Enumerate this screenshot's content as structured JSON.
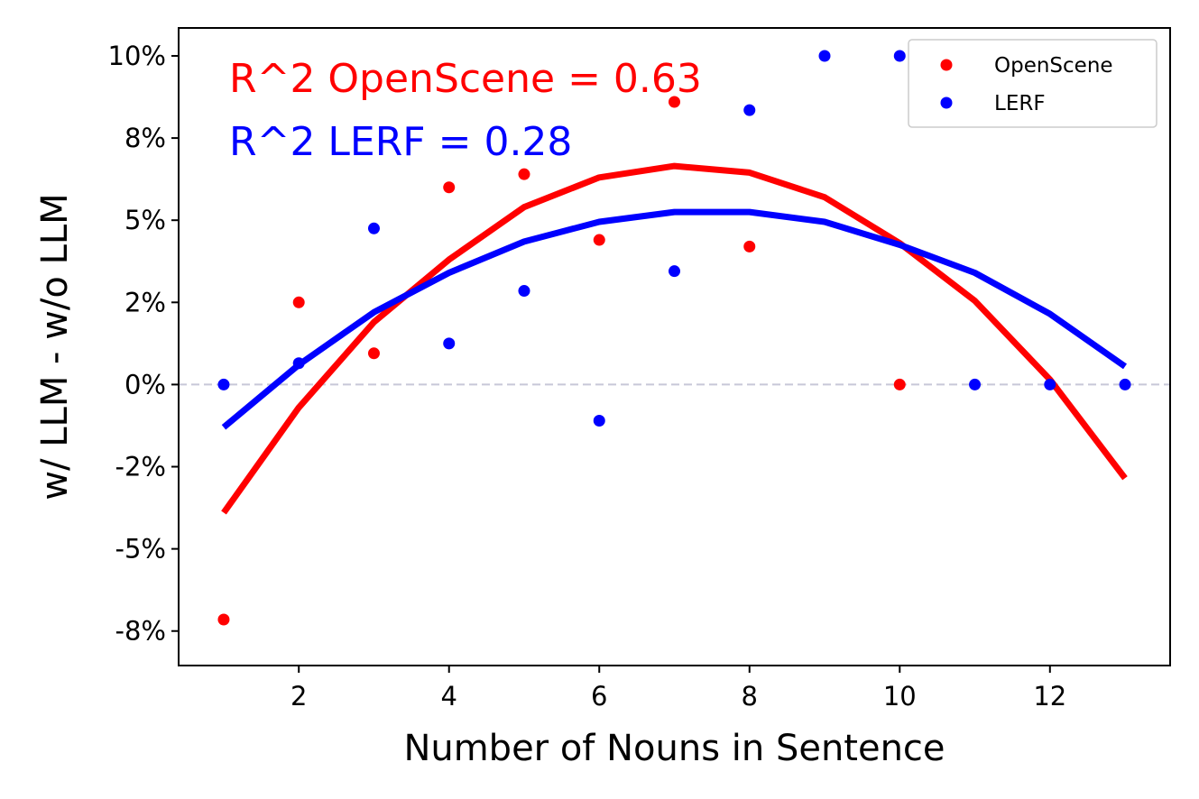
{
  "chart_data": {
    "type": "scatter",
    "xlabel": "Number of Nouns in Sentence",
    "ylabel": "w/ LLM - w/o LLM",
    "xlim": [
      0.4,
      13.6
    ],
    "ylim": [
      -0.0855,
      0.1085
    ],
    "x_ticks": [
      2,
      4,
      6,
      8,
      10,
      12
    ],
    "y_ticks": [
      {
        "value": -0.075,
        "label": "-8%"
      },
      {
        "value": -0.05,
        "label": "-5%"
      },
      {
        "value": -0.025,
        "label": "-2%"
      },
      {
        "value": 0.0,
        "label": "0%"
      },
      {
        "value": 0.025,
        "label": "2%"
      },
      {
        "value": 0.05,
        "label": "5%"
      },
      {
        "value": 0.075,
        "label": "8%"
      },
      {
        "value": 0.1,
        "label": "10%"
      }
    ],
    "reference_line": {
      "y": 0,
      "style": "dashed",
      "color": "#c8c8d8"
    },
    "legend": {
      "position": "top-right"
    },
    "grid": false,
    "series": [
      {
        "name": "OpenScene",
        "color": "#ff0000",
        "points": [
          {
            "x": 1,
            "y": -0.0715
          },
          {
            "x": 2,
            "y": 0.025
          },
          {
            "x": 3,
            "y": 0.0095
          },
          {
            "x": 4,
            "y": 0.06
          },
          {
            "x": 5,
            "y": 0.064
          },
          {
            "x": 6,
            "y": 0.044
          },
          {
            "x": 7,
            "y": 0.086
          },
          {
            "x": 8,
            "y": 0.042
          },
          {
            "x": 10,
            "y": 0.0
          }
        ],
        "fit": [
          {
            "x": 1,
            "y": -0.039
          },
          {
            "x": 2,
            "y": -0.007
          },
          {
            "x": 3,
            "y": 0.019
          },
          {
            "x": 4,
            "y": 0.038
          },
          {
            "x": 5,
            "y": 0.054
          },
          {
            "x": 6,
            "y": 0.063
          },
          {
            "x": 7,
            "y": 0.0665
          },
          {
            "x": 8,
            "y": 0.0645
          },
          {
            "x": 9,
            "y": 0.057
          },
          {
            "x": 10,
            "y": 0.043
          },
          {
            "x": 11,
            "y": 0.0255
          },
          {
            "x": 12,
            "y": 0.0015
          },
          {
            "x": 13,
            "y": -0.0285
          }
        ],
        "annotation": "R^2 OpenScene = 0.63"
      },
      {
        "name": "LERF",
        "color": "#0000ff",
        "points": [
          {
            "x": 1,
            "y": 0.0
          },
          {
            "x": 2,
            "y": 0.0065
          },
          {
            "x": 3,
            "y": 0.0475
          },
          {
            "x": 4,
            "y": 0.0125
          },
          {
            "x": 5,
            "y": 0.0285
          },
          {
            "x": 6,
            "y": -0.011
          },
          {
            "x": 7,
            "y": 0.0345
          },
          {
            "x": 8,
            "y": 0.0835
          },
          {
            "x": 9,
            "y": 0.1
          },
          {
            "x": 10,
            "y": 0.1
          },
          {
            "x": 11,
            "y": 0.0
          },
          {
            "x": 12,
            "y": 0.0
          },
          {
            "x": 13,
            "y": 0.0
          }
        ],
        "fit": [
          {
            "x": 1,
            "y": -0.013
          },
          {
            "x": 2,
            "y": 0.006
          },
          {
            "x": 3,
            "y": 0.022
          },
          {
            "x": 4,
            "y": 0.034
          },
          {
            "x": 5,
            "y": 0.0435
          },
          {
            "x": 6,
            "y": 0.0495
          },
          {
            "x": 7,
            "y": 0.0525
          },
          {
            "x": 8,
            "y": 0.0525
          },
          {
            "x": 9,
            "y": 0.0495
          },
          {
            "x": 10,
            "y": 0.0425
          },
          {
            "x": 11,
            "y": 0.034
          },
          {
            "x": 12,
            "y": 0.0215
          },
          {
            "x": 13,
            "y": 0.0055
          }
        ],
        "annotation": "R^2 LERF = 0.28"
      }
    ]
  }
}
